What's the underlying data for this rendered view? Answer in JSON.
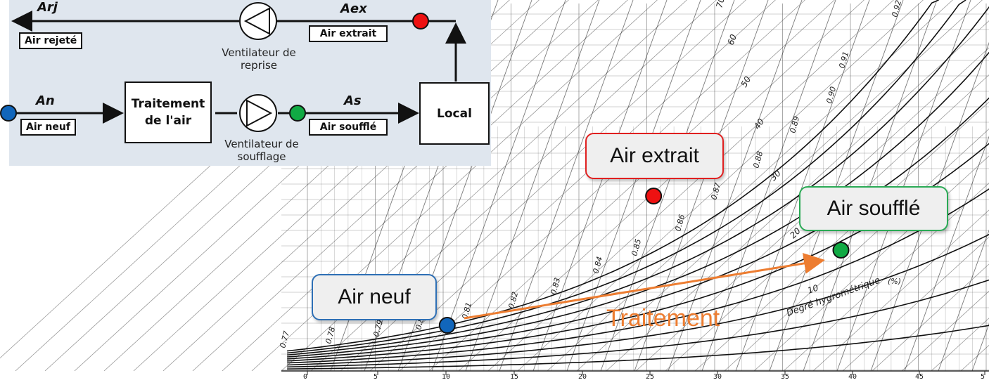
{
  "schema": {
    "arj_code": "Arj",
    "arj_label": "Air rejeté",
    "aex_code": "Aex",
    "aex_label": "Air extrait",
    "an_code": "An",
    "an_label": "Air neuf",
    "as_code": "As",
    "as_label": "Air soufflé",
    "treatment_box": "Traitement de l'air",
    "local_box": "Local",
    "fan_return_caption": "Ventilateur de reprise",
    "fan_supply_caption": "Ventilateur de soufflage"
  },
  "callouts": {
    "air_extrait": "Air extrait",
    "air_souffle": "Air soufflé",
    "air_neuf": "Air neuf",
    "traitement": "Traitement"
  },
  "colors": {
    "red": "#ee1111",
    "green": "#11aa44",
    "blue": "#1166bb",
    "orange": "#ed7d31",
    "schema_bg": "#dfe6ee"
  },
  "chart_data": {
    "type": "scatter",
    "title": "",
    "xlabel": "",
    "x_ticks": [
      "0",
      "5",
      "10",
      "15",
      "20",
      "25",
      "30",
      "35",
      "40",
      "45",
      "5"
    ],
    "points": [
      {
        "name": "Air neuf",
        "x": 10.3,
        "color": "blue"
      },
      {
        "name": "Air extrait",
        "x": 25.5,
        "color": "red"
      },
      {
        "name": "Air soufflé",
        "x": 39.3,
        "color": "green"
      }
    ],
    "annotations": [
      "Traitement"
    ],
    "background_labels": [
      "Degré hygrométrique",
      "(%)",
      "10",
      "20",
      "30",
      "40",
      "50",
      "60",
      "70",
      "0.80",
      "0.81",
      "0.82",
      "0.83",
      "0.84",
      "0.85",
      "0.86",
      "0.87",
      "0.88",
      "0.89",
      "0.90",
      "0.91",
      "0.92",
      "0.79",
      "0.78",
      "0.77"
    ]
  }
}
